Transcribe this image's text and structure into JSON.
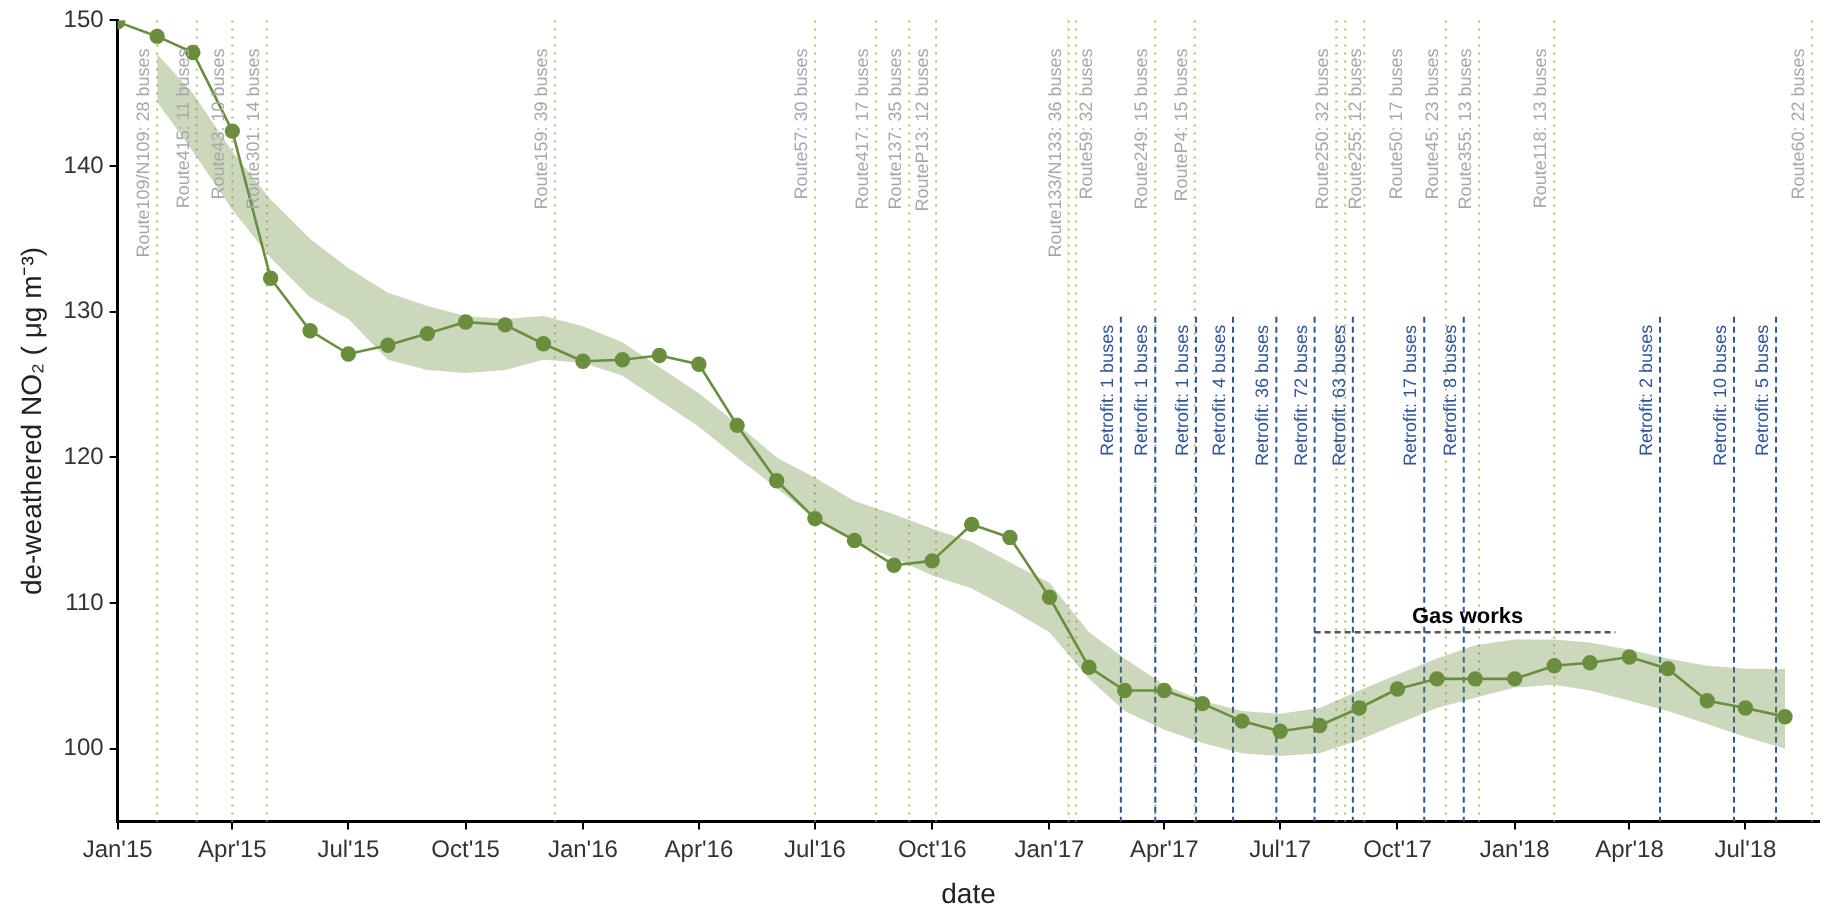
{
  "chart_data": {
    "type": "line",
    "xlabel": "date",
    "ylabel": "de-weathered NO₂ ( μg m⁻³)",
    "xlim": [
      "2015-01-01",
      "2018-08-28"
    ],
    "xticks": [
      {
        "value": "2015-01-01",
        "label": "Jan'15"
      },
      {
        "value": "2015-04-01",
        "label": "Apr'15"
      },
      {
        "value": "2015-07-01",
        "label": "Jul'15"
      },
      {
        "value": "2015-10-01",
        "label": "Oct'15"
      },
      {
        "value": "2016-01-01",
        "label": "Jan'16"
      },
      {
        "value": "2016-04-01",
        "label": "Apr'16"
      },
      {
        "value": "2016-07-01",
        "label": "Jul'16"
      },
      {
        "value": "2016-10-01",
        "label": "Oct'16"
      },
      {
        "value": "2017-01-01",
        "label": "Jan'17"
      },
      {
        "value": "2017-04-01",
        "label": "Apr'17"
      },
      {
        "value": "2017-07-01",
        "label": "Jul'17"
      },
      {
        "value": "2017-10-01",
        "label": "Oct'17"
      },
      {
        "value": "2018-01-01",
        "label": "Jan'18"
      },
      {
        "value": "2018-04-01",
        "label": "Apr'18"
      },
      {
        "value": "2018-07-01",
        "label": "Jul'18"
      }
    ],
    "ylim": [
      95,
      150
    ],
    "yticks": [
      100,
      110,
      120,
      130,
      140,
      150
    ],
    "grid": false,
    "legend": false,
    "marker": "circle",
    "line_style": "solid",
    "series": [
      {
        "color": "#6b8e3e",
        "x": [
          "2015-01",
          "2015-02",
          "2015-03",
          "2015-04",
          "2015-05",
          "2015-06",
          "2015-07",
          "2015-08",
          "2015-09",
          "2015-10",
          "2015-11",
          "2015-12",
          "2016-01",
          "2016-02",
          "2016-03",
          "2016-04",
          "2016-05",
          "2016-06",
          "2016-07",
          "2016-08",
          "2016-09",
          "2016-10",
          "2016-11",
          "2016-12",
          "2017-01",
          "2017-02",
          "2017-03",
          "2017-04",
          "2017-05",
          "2017-06",
          "2017-07",
          "2017-08",
          "2017-09",
          "2017-10",
          "2017-11",
          "2017-12",
          "2018-01",
          "2018-02",
          "2018-03",
          "2018-04",
          "2018-05",
          "2018-06",
          "2018-07",
          "2018-08"
        ],
        "values": [
          149.9,
          148.9,
          147.8,
          142.4,
          132.3,
          128.7,
          127.1,
          127.7,
          128.5,
          129.3,
          129.1,
          127.8,
          126.6,
          126.7,
          127.0,
          126.4,
          122.2,
          118.4,
          115.8,
          114.3,
          112.6,
          112.9,
          115.4,
          114.5,
          110.4,
          105.6,
          104.0,
          104.0,
          103.1,
          101.9,
          101.2,
          101.6,
          102.8,
          104.1,
          104.8,
          104.8,
          104.8,
          105.7,
          105.9,
          106.3,
          105.5,
          103.3,
          102.8,
          102.2
        ],
        "upper": [
          null,
          147.7,
          145,
          141,
          137.7,
          135,
          133,
          131.3,
          130.4,
          129.7,
          129.5,
          129.7,
          129.0,
          127.9,
          126.2,
          124.4,
          122.3,
          120,
          118.6,
          117,
          116.1,
          115.1,
          114.2,
          112.8,
          111.4,
          108.0,
          106.2,
          104.4,
          103.3,
          102.6,
          102.4,
          102.8,
          104.0,
          105.1,
          106.2,
          107.1,
          107.5,
          107.5,
          107.3,
          106.8,
          106.2,
          105.7,
          105.5,
          105.5
        ],
        "lower": [
          null,
          144.4,
          141,
          137,
          133.7,
          131,
          129.5,
          126.7,
          126,
          125.8,
          126,
          126.7,
          126.5,
          125.6,
          123.9,
          122.1,
          120,
          117.9,
          115.8,
          114.2,
          113.1,
          111.9,
          111,
          109.6,
          108,
          104.8,
          102.6,
          101.3,
          100.4,
          99.7,
          99.5,
          99.7,
          100.6,
          101.7,
          102.8,
          103.5,
          104.2,
          104.4,
          104,
          103.3,
          102.6,
          101.7,
          100.8,
          100.0
        ]
      },
      {
        "color": "#555555",
        "type": "line",
        "marker": "none",
        "line_style": "dashed",
        "x": [
          "2017-07-28",
          "2018-03-21"
        ],
        "values": [
          108,
          108
        ]
      }
    ],
    "annotations": [
      {
        "text": "Gas works",
        "x": "2017-11-25",
        "y": 108
      }
    ],
    "ref_lines": [
      {
        "axis": "x",
        "value": "2015-02-01",
        "label": "Route109/N109: 28 buses",
        "color": "#b8b86a",
        "line_style": "dotted"
      },
      {
        "axis": "x",
        "value": "2015-03-04",
        "label": "Route415: 11 buses",
        "color": "#b8b86a",
        "line_style": "dotted"
      },
      {
        "axis": "x",
        "value": "2015-04-01",
        "label": "Route43: 10 buses",
        "color": "#b8b86a",
        "line_style": "dotted"
      },
      {
        "axis": "x",
        "value": "2015-04-28",
        "label": "Route301: 14 buses",
        "color": "#b8b86a",
        "line_style": "dotted"
      },
      {
        "axis": "x",
        "value": "2015-12-10",
        "label": "Route159: 39 buses",
        "color": "#b8b86a",
        "line_style": "dotted"
      },
      {
        "axis": "x",
        "value": "2016-07-01",
        "label": "Route57: 30 buses",
        "color": "#b8b86a",
        "line_style": "dotted"
      },
      {
        "axis": "x",
        "value": "2016-08-18",
        "label": "Route417: 17 buses",
        "color": "#b8b86a",
        "line_style": "dotted"
      },
      {
        "axis": "x",
        "value": "2016-09-13",
        "label": "Route137: 35 buses",
        "color": "#b8b86a",
        "line_style": "dotted"
      },
      {
        "axis": "x",
        "value": "2016-10-04",
        "label": "RouteP13: 12 buses",
        "color": "#b8b86a",
        "line_style": "dotted"
      },
      {
        "axis": "x",
        "value": "2017-01-16",
        "label": "Route133/N133: 36 buses",
        "color": "#b8b86a",
        "line_style": "dotted"
      },
      {
        "axis": "x",
        "value": "2017-01-22",
        "label": "Route59: 32 buses",
        "color": "#b8b86a",
        "line_style": "dotted"
      },
      {
        "axis": "x",
        "value": "2017-03-25",
        "label": "Route249: 15 buses",
        "color": "#b8b86a",
        "line_style": "dotted"
      },
      {
        "axis": "x",
        "value": "2017-04-25",
        "label": "RouteP4: 15 buses",
        "color": "#b8b86a",
        "line_style": "dotted"
      },
      {
        "axis": "x",
        "value": "2017-08-14",
        "label": "Route250: 32 buses",
        "color": "#b8b86a",
        "line_style": "dotted"
      },
      {
        "axis": "x",
        "value": "2017-08-21",
        "label": "Route255: 12 buses",
        "color": "#b8b86a",
        "line_style": "dotted"
      },
      {
        "axis": "x",
        "value": "2017-09-05",
        "label": "Route50: 17 buses",
        "color": "#b8b86a",
        "line_style": "dotted"
      },
      {
        "axis": "x",
        "value": "2017-11-08",
        "label": "Route45: 23 buses",
        "color": "#b8b86a",
        "line_style": "dotted"
      },
      {
        "axis": "x",
        "value": "2017-12-04",
        "label": "Route355: 13 buses",
        "color": "#b8b86a",
        "line_style": "dotted"
      },
      {
        "axis": "x",
        "value": "2018-02-01",
        "label": "Route118: 13 buses",
        "color": "#b8b86a",
        "line_style": "dotted"
      },
      {
        "axis": "x",
        "value": "2018-08-22",
        "label": "Route60: 22 buses",
        "color": "#b8b86a",
        "line_style": "dotted"
      },
      {
        "axis": "x",
        "value": "2017-02-26",
        "label": "Retrofit: 1 buses",
        "color": "#2f5597",
        "line_style": "dashed"
      },
      {
        "axis": "x",
        "value": "2017-03-25",
        "label": "Retrofit: 1 buses",
        "color": "#2f5597",
        "line_style": "dashed"
      },
      {
        "axis": "x",
        "value": "2017-04-26",
        "label": "Retrofit: 1 buses",
        "color": "#2f5597",
        "line_style": "dashed"
      },
      {
        "axis": "x",
        "value": "2017-05-25",
        "label": "Retrofit: 4 buses",
        "color": "#2f5597",
        "line_style": "dashed"
      },
      {
        "axis": "x",
        "value": "2017-06-28",
        "label": "Retrofit: 36 buses",
        "color": "#2f5597",
        "line_style": "dashed"
      },
      {
        "axis": "x",
        "value": "2017-07-28",
        "label": "Retrofit: 72 buses",
        "color": "#2f5597",
        "line_style": "dashed"
      },
      {
        "axis": "x",
        "value": "2017-08-27",
        "label": "Retrofit: 63 buses",
        "color": "#2f5597",
        "line_style": "dashed"
      },
      {
        "axis": "x",
        "value": "2017-10-22",
        "label": "Retrofit: 17 buses",
        "color": "#2f5597",
        "line_style": "dashed"
      },
      {
        "axis": "x",
        "value": "2017-11-22",
        "label": "Retrofit: 8 buses",
        "color": "#2f5597",
        "line_style": "dashed"
      },
      {
        "axis": "x",
        "value": "2018-04-25",
        "label": "Retrofit: 2 buses",
        "color": "#2f5597",
        "line_style": "dashed"
      },
      {
        "axis": "x",
        "value": "2018-06-22",
        "label": "Retrofit: 10 buses",
        "color": "#2f5597",
        "line_style": "dashed"
      },
      {
        "axis": "x",
        "value": "2018-07-25",
        "label": "Retrofit: 5 buses",
        "color": "#2f5597",
        "line_style": "dashed"
      }
    ]
  }
}
